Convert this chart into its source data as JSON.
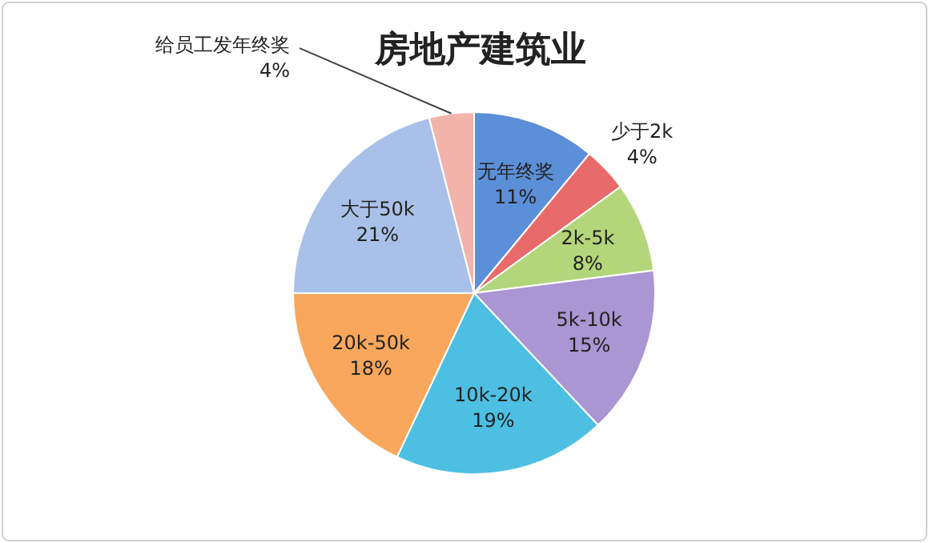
{
  "chart_data": {
    "type": "pie",
    "title": "房地产建筑业",
    "categories": [
      "无年终奖",
      "少于2k",
      "2k-5k",
      "5k-10k",
      "10k-20k",
      "20k-50k",
      "大于50k",
      "给员工发年终奖"
    ],
    "values": [
      11,
      4,
      8,
      15,
      19,
      18,
      21,
      4
    ],
    "value_labels": [
      "11%",
      "4%",
      "8%",
      "15%",
      "19%",
      "18%",
      "21%",
      "4%"
    ],
    "colors": [
      "#5b8fd8",
      "#e86a6a",
      "#b4d67a",
      "#a996d2",
      "#4dbfe2",
      "#f9a75c",
      "#a9c1e8",
      "#f2b3ab"
    ]
  }
}
